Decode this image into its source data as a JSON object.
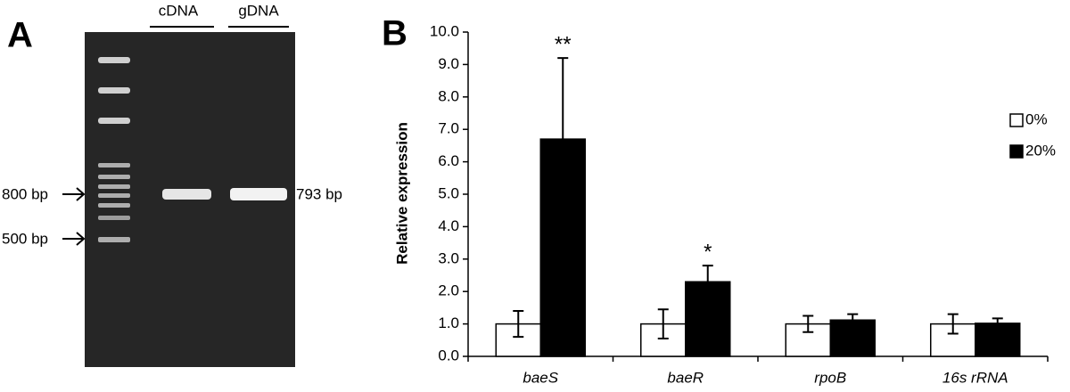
{
  "panel_a": {
    "label": "A",
    "lanes": [
      "cDNA",
      "gDNA"
    ],
    "markers": [
      "800 bp",
      "500 bp"
    ],
    "band_label": "793 bp"
  },
  "chart_data": {
    "type": "bar",
    "panel_label": "B",
    "y_label": "Relative expression",
    "categories": [
      "baeS",
      "baeR",
      "rpoB",
      "16s rRNA"
    ],
    "series": [
      {
        "name": "0%",
        "color": "#ffffff",
        "values": [
          1.0,
          1.0,
          1.0,
          1.0
        ],
        "errors": [
          0.4,
          0.45,
          0.25,
          0.3
        ]
      },
      {
        "name": "20%",
        "color": "#000000",
        "values": [
          6.7,
          2.3,
          1.12,
          1.02
        ],
        "errors": [
          2.5,
          0.5,
          0.18,
          0.15
        ],
        "annotations": [
          "**",
          "*",
          null,
          null
        ]
      }
    ],
    "ylim": [
      0,
      10
    ],
    "yticks": [
      {
        "value": 0,
        "label": "0.0"
      },
      {
        "value": 1,
        "label": "1.0"
      },
      {
        "value": 2,
        "label": "2.0"
      },
      {
        "value": 3,
        "label": "3.0"
      },
      {
        "value": 4,
        "label": "4.0"
      },
      {
        "value": 5,
        "label": "5.0"
      },
      {
        "value": 6,
        "label": "6.0"
      },
      {
        "value": 7,
        "label": "7.0"
      },
      {
        "value": 8,
        "label": "8.0"
      },
      {
        "value": 9,
        "label": "9.0"
      },
      {
        "value": 10,
        "label": "10.0"
      }
    ],
    "legend": "right"
  }
}
